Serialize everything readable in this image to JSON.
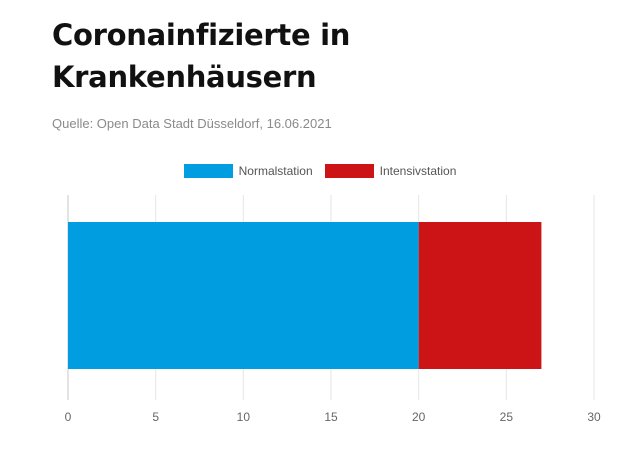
{
  "chart_data": {
    "type": "bar",
    "orientation": "horizontal",
    "stacked": true,
    "title": "Coronainfizierte in Krankenhäusern",
    "subtitle": "Quelle: Open Data Stadt Düsseldorf, 16.06.2021",
    "categories": [
      ""
    ],
    "series": [
      {
        "name": "Normalstation",
        "values": [
          20
        ],
        "color": "#009ee0"
      },
      {
        "name": "Intensivstation",
        "values": [
          7
        ],
        "color": "#cc1417"
      }
    ],
    "xlim": [
      0,
      30
    ],
    "x_ticks": [
      0,
      5,
      10,
      15,
      20,
      25,
      30
    ],
    "grid": true,
    "legend_position": "top-center",
    "xlabel": "",
    "ylabel": ""
  }
}
